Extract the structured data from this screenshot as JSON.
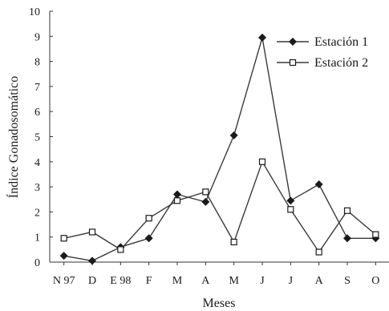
{
  "chart_data": {
    "type": "line",
    "title": "",
    "xlabel": "Meses",
    "ylabel": "Índice Gonadosomático",
    "categories": [
      "N 97",
      "D",
      "E 98",
      "F",
      "M",
      "A",
      "M",
      "J",
      "J",
      "A",
      "S",
      "O"
    ],
    "ylim": [
      0,
      10
    ],
    "yticks": [
      0,
      1,
      2,
      3,
      4,
      5,
      6,
      7,
      8,
      9,
      10
    ],
    "grid": false,
    "legend_position": "top-right",
    "series": [
      {
        "name": "Estación 1",
        "marker": "diamond",
        "marker_fill": "#1a1a1a",
        "line_color": "#3a3a3a",
        "values": [
          0.25,
          0.05,
          0.6,
          0.95,
          2.7,
          2.4,
          5.05,
          8.95,
          2.45,
          3.1,
          0.95,
          0.95
        ]
      },
      {
        "name": "Estación 2",
        "marker": "square",
        "marker_fill": "#ffffff",
        "line_color": "#3a3a3a",
        "values": [
          0.95,
          1.2,
          0.5,
          1.75,
          2.45,
          2.8,
          0.8,
          4.0,
          2.1,
          0.4,
          2.05,
          1.1
        ]
      }
    ]
  }
}
